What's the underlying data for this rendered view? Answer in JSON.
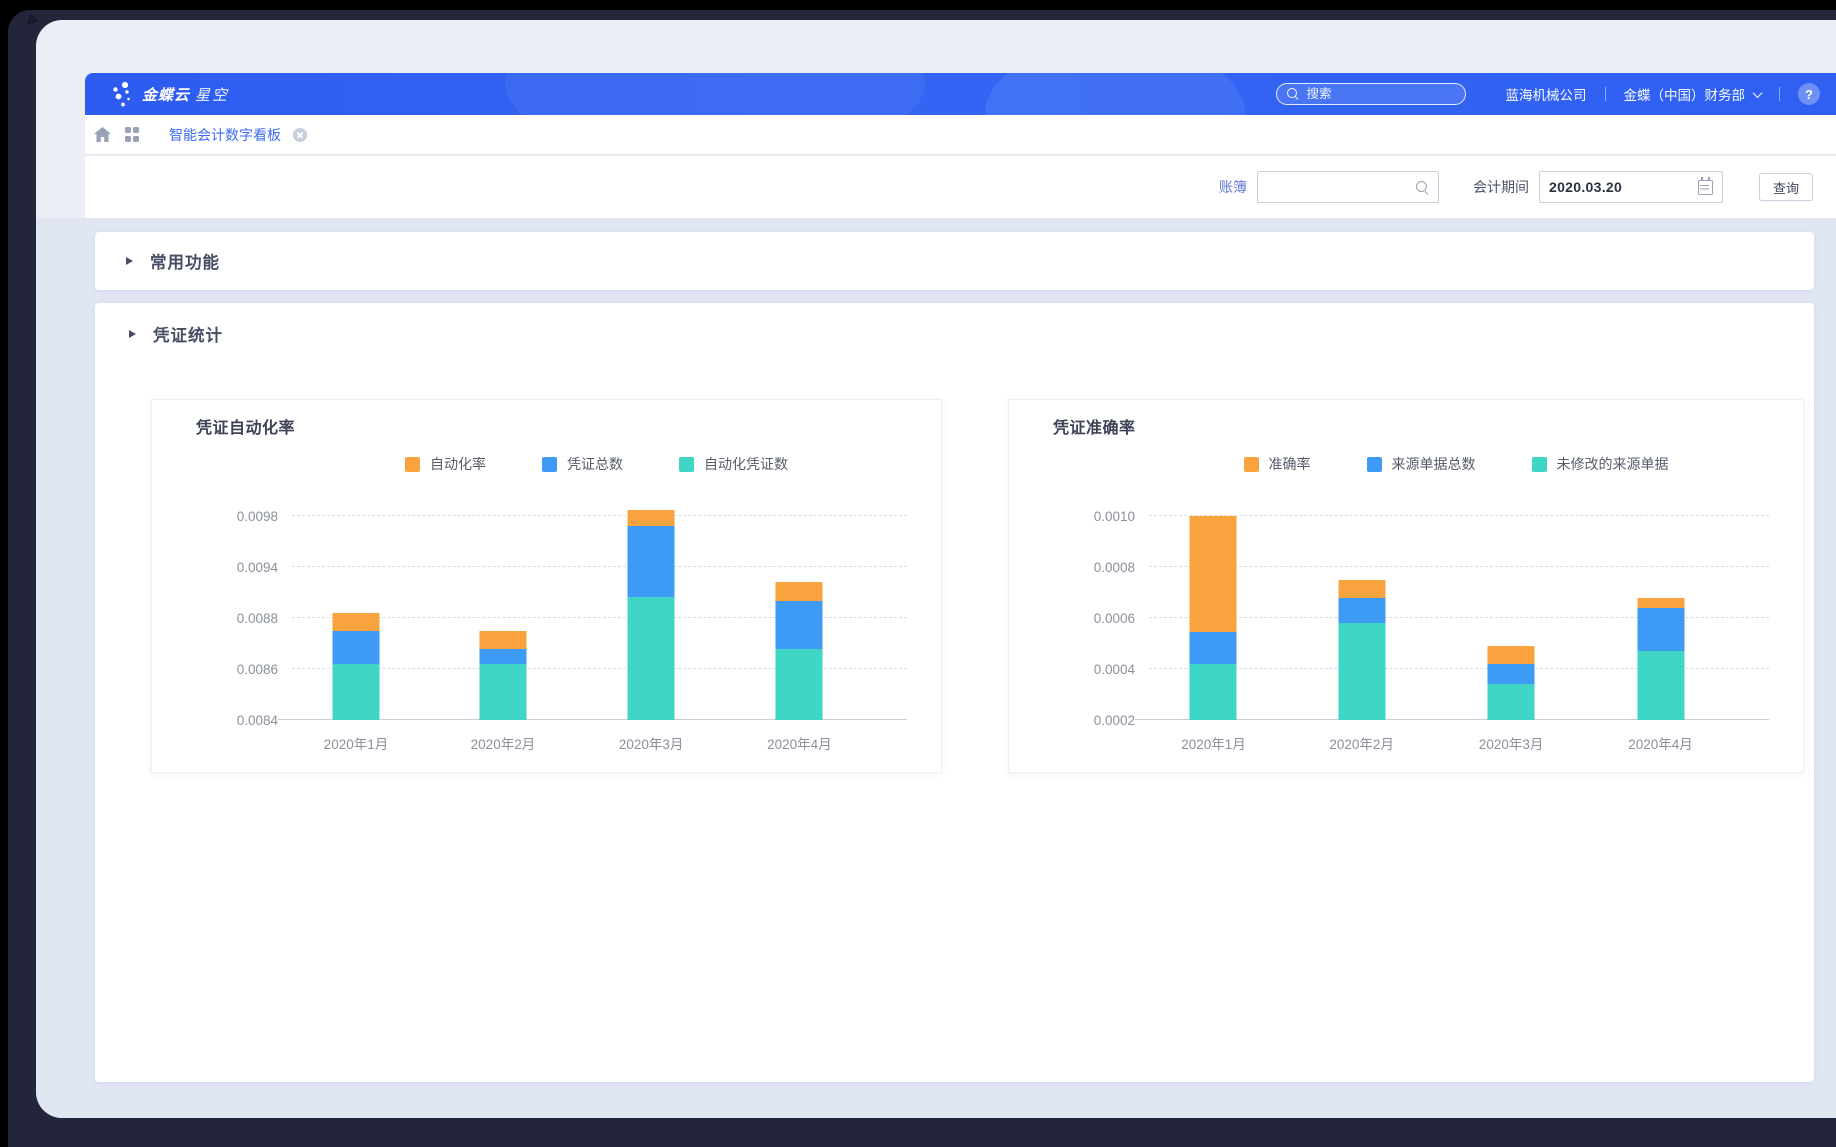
{
  "header": {
    "brand_bold": "金蝶云",
    "brand_light": "星空",
    "search": {
      "placeholder": "搜索"
    },
    "company": "蓝海机械公司",
    "department": "金蝶（中国）财务部",
    "help_label": "?"
  },
  "icons": {
    "header_search": "search-icon",
    "nav_home": "home-icon",
    "nav_apps": "grid-icon",
    "tab_close": "close-icon",
    "book_lookup": "search-icon",
    "period_picker": "calendar-icon",
    "user_dropdown": "chevron-down-icon",
    "help": "question-icon",
    "section_caret": "caret-right-icon"
  },
  "tabbar": {
    "active_tab": "智能会计数字看板"
  },
  "filters": {
    "book_label": "账簿",
    "book_value": "",
    "period_label": "会计期间",
    "period_value": "2020.03.20",
    "query_button": "查询"
  },
  "sections": {
    "common_functions": "常用功能",
    "voucher_stats": "凭证统计"
  },
  "colors": {
    "accent_blue": "#3d6bf3",
    "bar_orange": "#f8a33d",
    "bar_blue": "#3e9bf5",
    "bar_teal": "#3fd6c5",
    "header_gradient": "#2e5bf0"
  },
  "chart_data": [
    {
      "type": "bar",
      "stacked": true,
      "title": "凭证自动化率",
      "categories": [
        "2020年1月",
        "2020年2月",
        "2020年3月",
        "2020年4月"
      ],
      "yticks": [
        0.0084,
        0.0086,
        0.0088,
        0.0094,
        0.0098
      ],
      "ytick_labels": [
        "0.0084",
        "0.0086",
        "0.0088",
        "0.0094",
        "0.0098"
      ],
      "axis_note": "ticks evenly spaced on screen though values are non-uniform; grid dashed; stacked column tops given as absolute y-values",
      "series": [
        {
          "name": "自动化凭证数",
          "color": "#3fd6c5",
          "tops": [
            0.00862,
            0.00862,
            0.00905,
            0.00868
          ]
        },
        {
          "name": "凭证总数",
          "color": "#3e9bf5",
          "tops": [
            0.00875,
            0.00868,
            0.00972,
            0.009
          ]
        },
        {
          "name": "自动化率",
          "color": "#f8a33d",
          "tops": [
            0.00886,
            0.00875,
            0.00985,
            0.00922
          ]
        }
      ],
      "legend": [
        {
          "name": "自动化率",
          "color": "#f8a33d"
        },
        {
          "name": "凭证总数",
          "color": "#3e9bf5"
        },
        {
          "name": "自动化凭证数",
          "color": "#3fd6c5"
        }
      ],
      "legend_position": "top-center"
    },
    {
      "type": "bar",
      "stacked": true,
      "title": "凭证准确率",
      "categories": [
        "2020年1月",
        "2020年2月",
        "2020年3月",
        "2020年4月"
      ],
      "yticks": [
        0.0002,
        0.0004,
        0.0006,
        0.0008,
        0.001
      ],
      "ytick_labels": [
        "0.0002",
        "0.0004",
        "0.0006",
        "0.0008",
        "0.0010"
      ],
      "axis_note": "linear axis 0.0002–0.0010; stacked column tops given as absolute y-values",
      "series": [
        {
          "name": "未修改的来源单据",
          "color": "#3fd6c5",
          "tops": [
            0.00042,
            0.00058,
            0.00034,
            0.00047
          ]
        },
        {
          "name": "来源单据总数",
          "color": "#3e9bf5",
          "tops": [
            0.000545,
            0.00068,
            0.00042,
            0.00064
          ]
        },
        {
          "name": "准确率",
          "color": "#f8a33d",
          "tops": [
            0.001,
            0.00075,
            0.00049,
            0.00068
          ]
        }
      ],
      "legend": [
        {
          "name": "准确率",
          "color": "#f8a33d"
        },
        {
          "name": "来源单据总数",
          "color": "#3e9bf5"
        },
        {
          "name": "未修改的来源单据",
          "color": "#3fd6c5"
        }
      ],
      "legend_position": "top-center"
    }
  ]
}
